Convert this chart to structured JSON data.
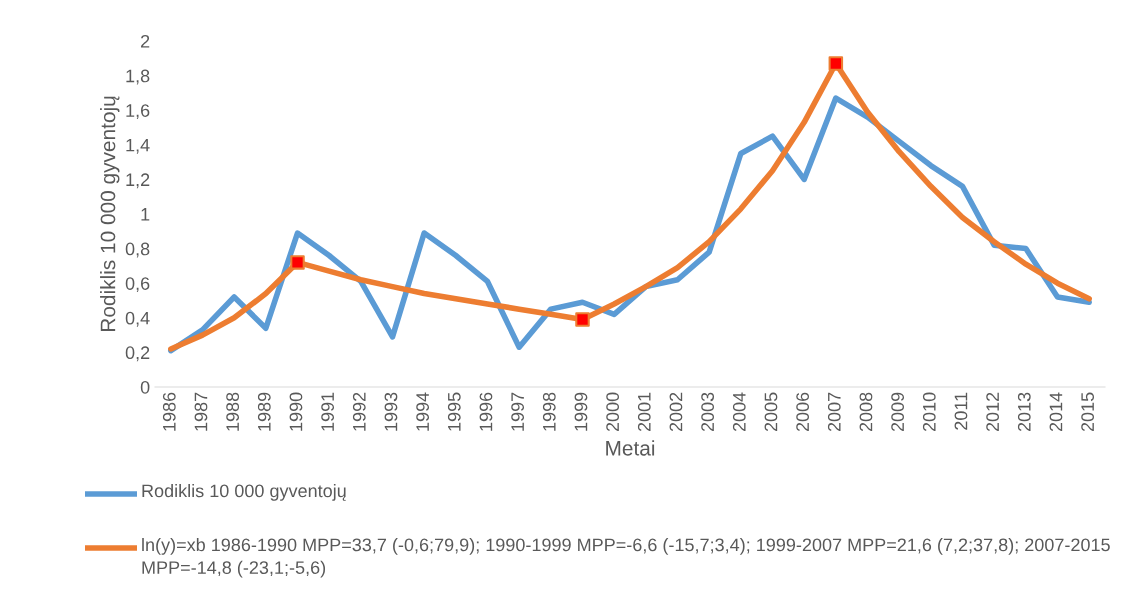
{
  "chart_data": {
    "type": "line",
    "xlabel": "Metai",
    "ylabel": "Rodiklis 10 000 gyventojų",
    "categories": [
      "1986",
      "1987",
      "1988",
      "1989",
      "1990",
      "1991",
      "1992",
      "1993",
      "1994",
      "1995",
      "1996",
      "1997",
      "1998",
      "1999",
      "2000",
      "2001",
      "2002",
      "2003",
      "2004",
      "2005",
      "2006",
      "2007",
      "2008",
      "2009",
      "2010",
      "2011",
      "2012",
      "2013",
      "2014",
      "2015"
    ],
    "series": [
      {
        "name": "Rodiklis 10 000 gyventojų",
        "color": "#5b9bd5",
        "values": [
          0.21,
          0.33,
          0.52,
          0.34,
          0.89,
          0.76,
          0.61,
          0.29,
          0.89,
          0.76,
          0.61,
          0.23,
          0.45,
          0.49,
          0.42,
          0.58,
          0.62,
          0.78,
          1.35,
          1.45,
          1.2,
          1.67,
          1.56,
          1.42,
          1.28,
          1.16,
          0.82,
          0.8,
          0.52,
          0.49
        ]
      },
      {
        "name": "ln(y)=xb 1986-1990 MPP=33,7 (-0,6;79,9); 1990-1999 MPP=-6,6 (-15,7;3,4); 1999-2007 MPP=21,6 (7,2;37,8); 2007-2015 MPP=-14,8 (-23,1;-5,6)",
        "color": "#ed7d31",
        "values": [
          0.22,
          0.3,
          0.4,
          0.54,
          0.72,
          0.67,
          0.62,
          0.58,
          0.54,
          0.51,
          0.48,
          0.45,
          0.42,
          0.39,
          0.48,
          0.58,
          0.69,
          0.84,
          1.03,
          1.25,
          1.53,
          1.87,
          1.59,
          1.36,
          1.16,
          0.98,
          0.84,
          0.71,
          0.6,
          0.51
        ]
      },
      {
        "type": "scatter",
        "color": "#ff0000",
        "marker": "square",
        "values": [
          null,
          null,
          null,
          null,
          0.72,
          null,
          null,
          null,
          null,
          null,
          null,
          null,
          null,
          0.39,
          null,
          null,
          null,
          null,
          null,
          null,
          null,
          1.87,
          null,
          null,
          null,
          null,
          null,
          null,
          null,
          null
        ]
      }
    ],
    "ylim": [
      0,
      2
    ],
    "yticks": [
      0,
      {
        "value": 0.2,
        "label": "0,2"
      },
      {
        "value": 0.4,
        "label": "0,4"
      },
      {
        "value": 0.6,
        "label": "0,6"
      },
      {
        "value": 0.8,
        "label": "0,8"
      },
      1,
      {
        "value": 1.2,
        "label": "1,2"
      },
      {
        "value": 1.4,
        "label": "1,4"
      },
      {
        "value": 1.6,
        "label": "1,6"
      },
      {
        "value": 1.8,
        "label": "1,8"
      },
      2
    ],
    "grid": false,
    "legend": "bottom"
  }
}
